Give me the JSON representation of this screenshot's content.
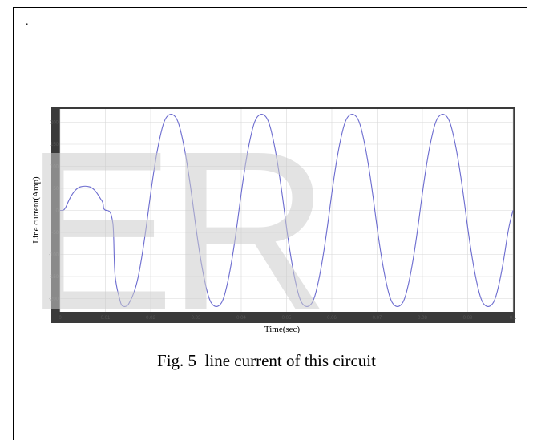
{
  "page": {
    "marker": ".",
    "watermark": "ER",
    "caption": "Fig. 5  line current of this circuit"
  },
  "chart_data": {
    "type": "line",
    "xlabel": "Time(sec)",
    "ylabel": "Line current(Amp)",
    "xlim": [
      0,
      0.1
    ],
    "ylim": [
      -230,
      230
    ],
    "x_ticks": [
      0,
      0.01,
      0.02,
      0.03,
      0.04,
      0.05,
      0.06,
      0.07,
      0.08,
      0.09,
      0.1
    ],
    "x_tick_labels": [
      "0",
      "0.01",
      "0.02",
      "0.03",
      "0.04",
      "0.05",
      "0.06",
      "0.07",
      "0.08",
      "0.09",
      "0.1"
    ],
    "y_ticks": [
      -200,
      -150,
      -100,
      -50,
      0,
      50,
      100,
      150,
      200
    ],
    "y_tick_labels": [
      "-200",
      "-150",
      "-100",
      "-50",
      "0",
      "50",
      "100",
      "150",
      "200"
    ],
    "grid": true,
    "series_color": "#6b6bcf",
    "series": [
      {
        "x": [
          0,
          0.001,
          0.002,
          0.003,
          0.004,
          0.005,
          0.006,
          0.007,
          0.008,
          0.009,
          0.0095,
          0.0096,
          0.011,
          0.0115,
          0.0118,
          0.012,
          0.0125,
          0.013,
          0.0135,
          0.014,
          0.0145,
          0.015,
          0.0155,
          0.016,
          0.017,
          0.018,
          0.019,
          0.02,
          0.021,
          0.022,
          0.023,
          0.024,
          0.025,
          0.026,
          0.027,
          0.028,
          0.029,
          0.03,
          0.031,
          0.032,
          0.033,
          0.034,
          0.035,
          0.036,
          0.037,
          0.038,
          0.039,
          0.04,
          0.041,
          0.042,
          0.043,
          0.044,
          0.045,
          0.046,
          0.047,
          0.048,
          0.049,
          0.05,
          0.051,
          0.052,
          0.053,
          0.054,
          0.055,
          0.056,
          0.057,
          0.058,
          0.059,
          0.06,
          0.061,
          0.062,
          0.063,
          0.064,
          0.065,
          0.066,
          0.067,
          0.068,
          0.069,
          0.07,
          0.071,
          0.072,
          0.073,
          0.074,
          0.075,
          0.076,
          0.077,
          0.078,
          0.079,
          0.08,
          0.081,
          0.082,
          0.083,
          0.084,
          0.085,
          0.086,
          0.087,
          0.088,
          0.089,
          0.09,
          0.091,
          0.092,
          0.093,
          0.094,
          0.095,
          0.096,
          0.097,
          0.098,
          0.099,
          0.1
        ],
        "y": [
          0,
          0,
          25,
          42,
          52,
          55,
          55,
          52,
          42,
          25,
          18,
          0,
          0,
          -18,
          -40,
          -140,
          -175,
          -195,
          -215,
          -218,
          -218,
          -215,
          -205,
          -195,
          -165,
          -110,
          -40,
          40,
          110,
          165,
          205,
          218,
          218,
          205,
          165,
          110,
          40,
          -40,
          -110,
          -165,
          -205,
          -218,
          -218,
          -205,
          -165,
          -110,
          -40,
          40,
          110,
          165,
          205,
          218,
          218,
          205,
          165,
          110,
          40,
          -40,
          -110,
          -165,
          -205,
          -218,
          -218,
          -205,
          -165,
          -110,
          -40,
          40,
          110,
          165,
          205,
          218,
          218,
          205,
          165,
          110,
          40,
          -40,
          -110,
          -165,
          -205,
          -218,
          -218,
          -205,
          -165,
          -110,
          -40,
          40,
          110,
          165,
          205,
          218,
          218,
          205,
          165,
          110,
          40,
          -40,
          -110,
          -165,
          -205,
          -218,
          -218,
          -205,
          -165,
          -110,
          -40,
          0
        ]
      }
    ]
  }
}
